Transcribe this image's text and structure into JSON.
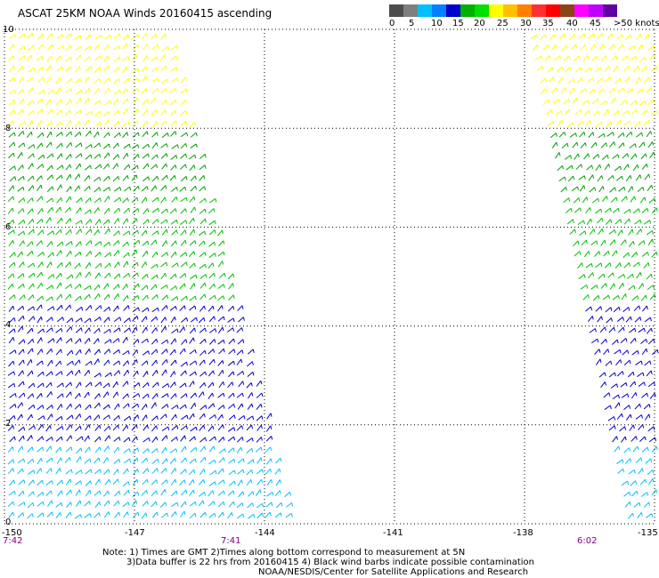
{
  "title": "ASCAT 25KM NOAA Winds 20160415 ascending",
  "legend": {
    "colors": [
      "#4d4d4d",
      "#7f7f7f",
      "#00bfff",
      "#0080ff",
      "#0000cc",
      "#00b000",
      "#00e000",
      "#ffff00",
      "#ffc000",
      "#ff8000",
      "#ff3030",
      "#ff0000",
      "#8b4513",
      "#ff00ff",
      "#c000ff",
      "#6000a0"
    ],
    "labels": [
      "0",
      "5",
      "10",
      "15",
      "20",
      "25",
      "30",
      "35",
      "40",
      "45",
      ">50 knots"
    ]
  },
  "axes": {
    "x_ticks": [
      "-150",
      "-147",
      "-144",
      "-141",
      "-138",
      "-135"
    ],
    "y_ticks": [
      "0",
      "2",
      "4",
      "6",
      "8",
      "10"
    ]
  },
  "times": [
    "7:42",
    "7:41",
    "6:02"
  ],
  "notes": [
    "Note: 1) Times are GMT 2)Times along bottom correspond to measurement at 5N",
    "3)Data buffer is 22 hrs from 20160415 4) Black wind barbs indicate possible contamination",
    "NOAA/NESDIS/Center for Satellite Applications and Research"
  ],
  "map": {
    "lon_range": [
      -150,
      -135
    ],
    "lat_range": [
      0,
      10
    ],
    "swaths": [
      {
        "name": "west-swath",
        "lon_west_top": -150,
        "lon_east_top": -146.2,
        "lon_west_bottom": -150,
        "lon_east_bottom": -143.3
      },
      {
        "name": "east-swath",
        "lon_west_top": -138.0,
        "lon_east_top": -135,
        "lon_west_bottom": -135.7,
        "lon_east_bottom": -135
      }
    ],
    "wind_bands": [
      {
        "lat_from": 8,
        "lat_to": 10,
        "color": "#ffff00"
      },
      {
        "lat_from": 6.5,
        "lat_to": 8,
        "color": "#00a000"
      },
      {
        "lat_from": 4.5,
        "lat_to": 6.5,
        "color": "#00c000"
      },
      {
        "lat_from": 1.5,
        "lat_to": 4.5,
        "color": "#0000cc"
      },
      {
        "lat_from": 0,
        "lat_to": 1.5,
        "color": "#00bfff"
      }
    ]
  }
}
